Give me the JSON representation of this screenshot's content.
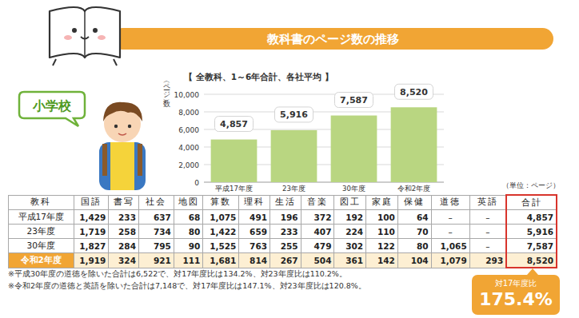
{
  "header": {
    "title": "教科書のページ数の推移"
  },
  "label": "小学校",
  "chart_data": {
    "type": "bar",
    "title": "【 全教科、1～6年合計、各社平均 】",
    "y_label": "（ページ数）",
    "categories": [
      "平成17年度",
      "23年度",
      "30年度",
      "令和2年度"
    ],
    "values": [
      4857,
      5916,
      7587,
      8520
    ],
    "value_labels": [
      "4,857",
      "5,916",
      "7,587",
      "8,520"
    ],
    "color": "#b9d681",
    "ylim": [
      0,
      10000
    ],
    "yticks": [
      0,
      {
        "value": 2000,
        "label": "2,000"
      },
      {
        "value": 4000,
        "label": "4,000"
      },
      {
        "value": 6000,
        "label": "6,000"
      },
      {
        "value": 8000,
        "label": "8,000"
      },
      {
        "value": 10000,
        "label": "10,000"
      }
    ],
    "grid": true,
    "data_labels": true
  },
  "table": {
    "unit": "（単位：ページ）",
    "header": [
      "教科",
      "国語",
      "書写",
      "社会",
      "地図",
      "算数",
      "理科",
      "生活",
      "音楽",
      "図工",
      "家庭",
      "保健",
      "道徳",
      "英語",
      "合計"
    ],
    "rows": [
      [
        "平成17年度",
        "1,429",
        "233",
        "637",
        "68",
        "1,075",
        "491",
        "196",
        "372",
        "192",
        "100",
        "64",
        "–",
        "–",
        "4,857"
      ],
      [
        "23年度",
        "1,719",
        "258",
        "734",
        "80",
        "1,422",
        "659",
        "233",
        "407",
        "224",
        "110",
        "70",
        "–",
        "–",
        "5,916"
      ],
      [
        "30年度",
        "1,827",
        "284",
        "795",
        "90",
        "1,525",
        "763",
        "255",
        "479",
        "302",
        "122",
        "80",
        "1,065",
        "–",
        "7,587"
      ],
      [
        "令和2年度",
        "1,919",
        "324",
        "921",
        "111",
        "1,681",
        "814",
        "267",
        "504",
        "361",
        "142",
        "104",
        "1,079",
        "293",
        "8,520"
      ]
    ]
  },
  "notes": [
    "※平成30年度の道徳を除いた合計は6,522で、対17年度比は134.2%、対23年度比は110.2%。",
    "※令和2年度の道徳と英語を除いた合計は7,148で、対17年度比は147.1%、対23年度比は120.8%。"
  ],
  "badge": {
    "label": "対17年度比",
    "value": "175.4%"
  }
}
